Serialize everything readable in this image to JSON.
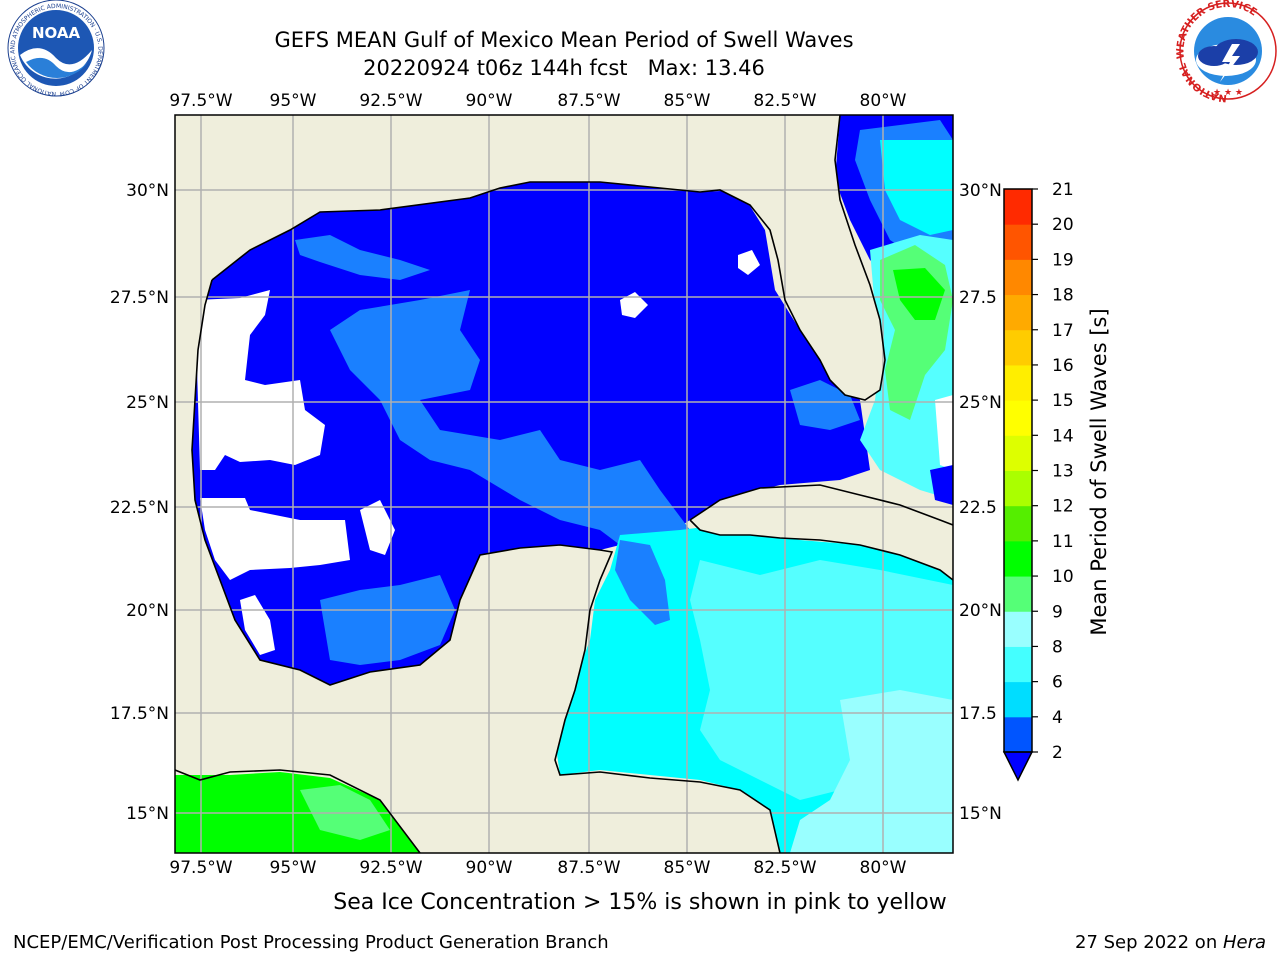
{
  "header": {
    "title_line1": "GEFS MEAN Gulf of Mexico Mean Period of Swell Waves",
    "title_line2": "20220924 t06z 144h fcst   Max: 13.46"
  },
  "logos": {
    "left": "NOAA",
    "left_ring": "NATIONAL OCEANIC AND ATMOSPHERIC ADMINISTRATION · U.S. DEPARTMENT OF COMMERCE",
    "right_ring": "NATIONAL WEATHER SERVICE"
  },
  "map": {
    "lon_labels": [
      "97.5°W",
      "95°W",
      "92.5°W",
      "90°W",
      "87.5°W",
      "85°W",
      "82.5°W",
      "80°W"
    ],
    "lat_labels_left": [
      "30°N",
      "27.5°N",
      "25°N",
      "22.5°N",
      "20°N",
      "17.5°N",
      "15°N"
    ],
    "lat_labels_right": [
      "30°N",
      "27.5",
      "25°N",
      "22.5",
      "20°N",
      "17.5",
      "15°N"
    ],
    "colors": {
      "land": "#efeedc",
      "no_data": "#ffffff",
      "c2": "#0000ff",
      "c4": "#1a80ff",
      "c6": "#00ffff",
      "c8": "#55ffff",
      "c9": "#99ffff",
      "c10": "#55ff77",
      "c11": "#00ff00",
      "grid": "#b0b0b0"
    }
  },
  "colorbar": {
    "label": "Mean Period of Swell Waves [s]",
    "ticks": [
      "2",
      "4",
      "6",
      "8",
      "9",
      "10",
      "11",
      "12",
      "13",
      "14",
      "15",
      "16",
      "17",
      "18",
      "19",
      "20",
      "21"
    ],
    "colors": [
      "#0055ff",
      "#00ddff",
      "#44ffff",
      "#99ffff",
      "#55ff77",
      "#00ff00",
      "#55ee00",
      "#aaff00",
      "#ddff00",
      "#ffff00",
      "#ffee00",
      "#ffcc00",
      "#ffaa00",
      "#ff8800",
      "#ff5500",
      "#ff2a00"
    ],
    "extend_color": "#0000ff"
  },
  "footer": {
    "note": "Sea Ice Concentration > 15% is shown in pink to yellow",
    "left": "NCEP/EMC/Verification Post Processing Product Generation Branch",
    "right_prefix": "27 Sep 2022 on ",
    "right_machine": "Hera"
  }
}
